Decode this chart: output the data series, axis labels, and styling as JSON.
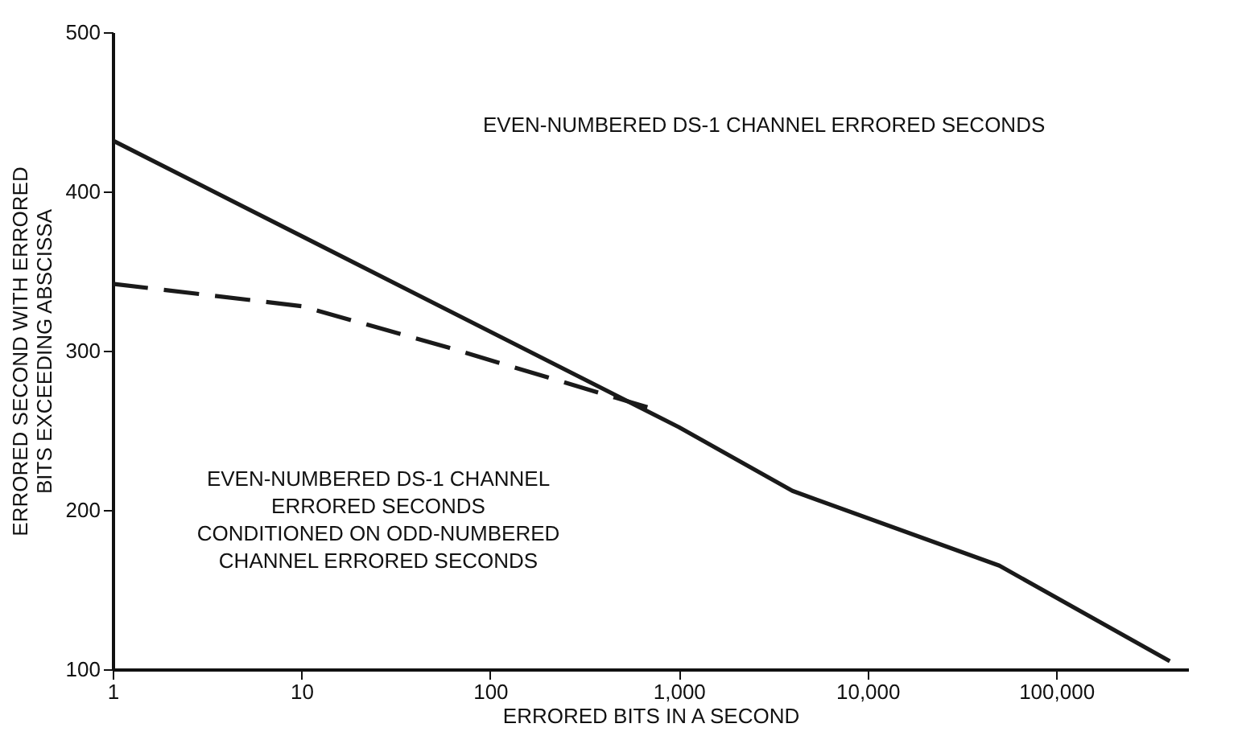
{
  "chart_data": {
    "type": "line",
    "xlabel": "ERRORED BITS IN A SECOND",
    "ylabel": "ERRORED SECOND WITH ERRORED\nBITS EXCEEDING ABSCISSA",
    "log": "x",
    "xlim": [
      1,
      500000
    ],
    "ylim": [
      100,
      500
    ],
    "xticks": [
      1,
      10,
      100,
      {
        "value": 1000,
        "label": "1,000"
      },
      {
        "value": 10000,
        "label": "10,000"
      },
      {
        "value": 100000,
        "label": "100,000"
      }
    ],
    "yticks": [
      100,
      200,
      300,
      400,
      500
    ],
    "grid": false,
    "marker": "none",
    "series": [
      {
        "color": "#1a1a1a",
        "line_style": "solid",
        "x": [
          1,
          10,
          100,
          1000,
          4000,
          50000,
          400000
        ],
        "values": [
          432,
          372,
          312,
          252,
          212,
          165,
          105
        ]
      },
      {
        "color": "#1a1a1a",
        "line_style": "dashed",
        "x": [
          1,
          10,
          60,
          800
        ],
        "values": [
          342,
          328,
          302,
          262
        ]
      }
    ],
    "annotations": [
      "EVEN-NUMBERED DS-1 CHANNEL ERRORED SECONDS",
      "EVEN-NUMBERED DS-1 CHANNEL\nERRORED SECONDS\nCONDITIONED ON ODD-NUMBERED\nCHANNEL ERRORED SECONDS"
    ]
  }
}
